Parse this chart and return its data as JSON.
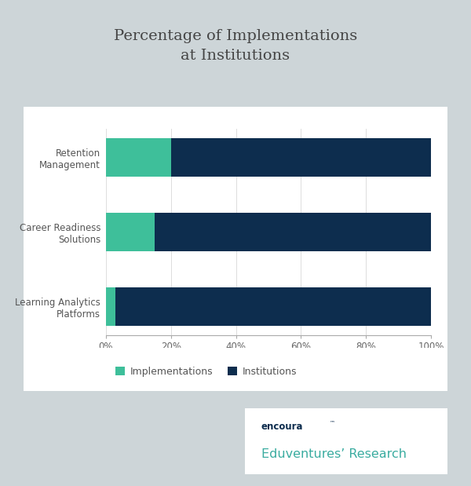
{
  "title": "Percentage of Implementations\nat Institutions",
  "categories": [
    "Retention\nManagement",
    "Career Readiness\nSolutions",
    "Learning Analytics\nPlatforms"
  ],
  "implementations": [
    20,
    15,
    3
  ],
  "institutions": [
    80,
    85,
    97
  ],
  "color_implementations": "#3ebf9a",
  "color_institutions": "#0d2d4e",
  "background_outer": "#cdd5d8",
  "background_panel": "#ffffff",
  "xlabel_ticks": [
    "0%",
    "20%",
    "40%",
    "60%",
    "80%",
    "100%"
  ],
  "xlabel_vals": [
    0,
    20,
    40,
    60,
    80,
    100
  ],
  "legend_labels": [
    "Implementations",
    "Institutions"
  ],
  "title_color": "#444444",
  "tick_color": "#666666",
  "label_color": "#555555",
  "encoura_text": "encoura",
  "tm_text": "™",
  "eduventures_text": "Eduventures’ Research",
  "encoura_color": "#0d2d4e",
  "eduventures_color": "#3aaca0",
  "figwidth": 6.0,
  "figheight": 6.19,
  "dpi": 100
}
